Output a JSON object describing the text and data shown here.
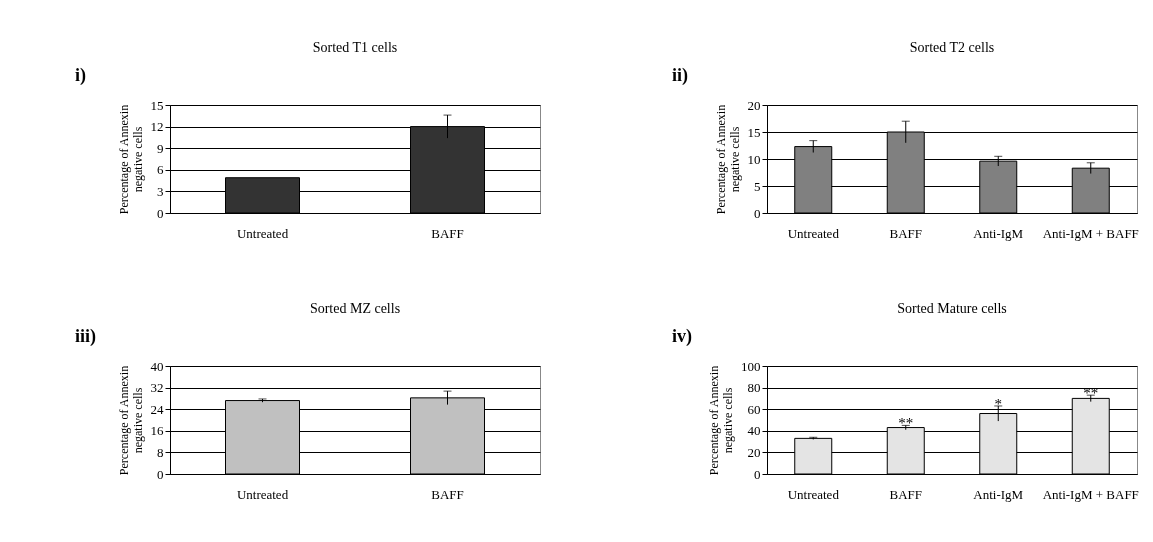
{
  "chart_data": [
    {
      "type": "bar",
      "title": "Sorted T1 cells",
      "ylabel": "Percentage of Annexin negative cells",
      "categories": [
        "Untreated",
        "BAFF"
      ],
      "values": [
        4.9,
        12.0
      ],
      "errors": [
        null,
        1.6
      ],
      "colors": [
        "#333333",
        "#333333"
      ],
      "ylim": [
        0,
        15
      ],
      "yticks": [
        0,
        3,
        6,
        9,
        12,
        15
      ],
      "grid": "y",
      "annotations": [
        "i)"
      ]
    },
    {
      "type": "bar",
      "title": "Sorted T2 cells",
      "ylabel": "Percentage of Annexin negative cells",
      "categories": [
        "Untreated",
        "BAFF",
        "Anti-IgM",
        "Anti-IgM + BAFF"
      ],
      "values": [
        12.3,
        15.0,
        9.6,
        8.3
      ],
      "errors": [
        1.1,
        2.0,
        0.9,
        1.0
      ],
      "colors": [
        "#808080",
        "#808080",
        "#808080",
        "#808080"
      ],
      "ylim": [
        0,
        20
      ],
      "yticks": [
        0,
        5,
        10,
        15,
        20
      ],
      "grid": "y",
      "annotations": [
        "ii)"
      ]
    },
    {
      "type": "bar",
      "title": "Sorted MZ cells",
      "ylabel": "Percentage of Annexin negative cells",
      "categories": [
        "Untreated",
        "BAFF"
      ],
      "values": [
        27.2,
        28.2
      ],
      "errors": [
        0.6,
        2.5
      ],
      "colors": [
        "#c0c0c0",
        "#c0c0c0"
      ],
      "ylim": [
        0,
        40
      ],
      "yticks": [
        0,
        8,
        16,
        24,
        32,
        40
      ],
      "grid": "y",
      "annotations": [
        "iii)"
      ]
    },
    {
      "type": "bar",
      "title": "Sorted Mature cells",
      "ylabel": "Percentage of Annexin negative cells",
      "categories": [
        "Untreated",
        "BAFF",
        "Anti-IgM",
        "Anti-IgM + BAFF"
      ],
      "values": [
        33,
        43,
        56,
        70
      ],
      "errors": [
        1,
        2,
        7,
        3
      ],
      "colors": [
        "#e4e4e4",
        "#e4e4e4",
        "#e4e4e4",
        "#e4e4e4"
      ],
      "ylim": [
        0,
        100
      ],
      "yticks": [
        0,
        20,
        40,
        60,
        80,
        100
      ],
      "grid": "y",
      "annotations": [
        "iv)",
        {
          "text": "**",
          "x": "BAFF",
          "y": 45
        },
        {
          "text": "*",
          "x": "Anti-IgM",
          "y": 63
        },
        {
          "text": "**",
          "x": "Anti-IgM + BAFF",
          "y": 73
        }
      ]
    }
  ]
}
